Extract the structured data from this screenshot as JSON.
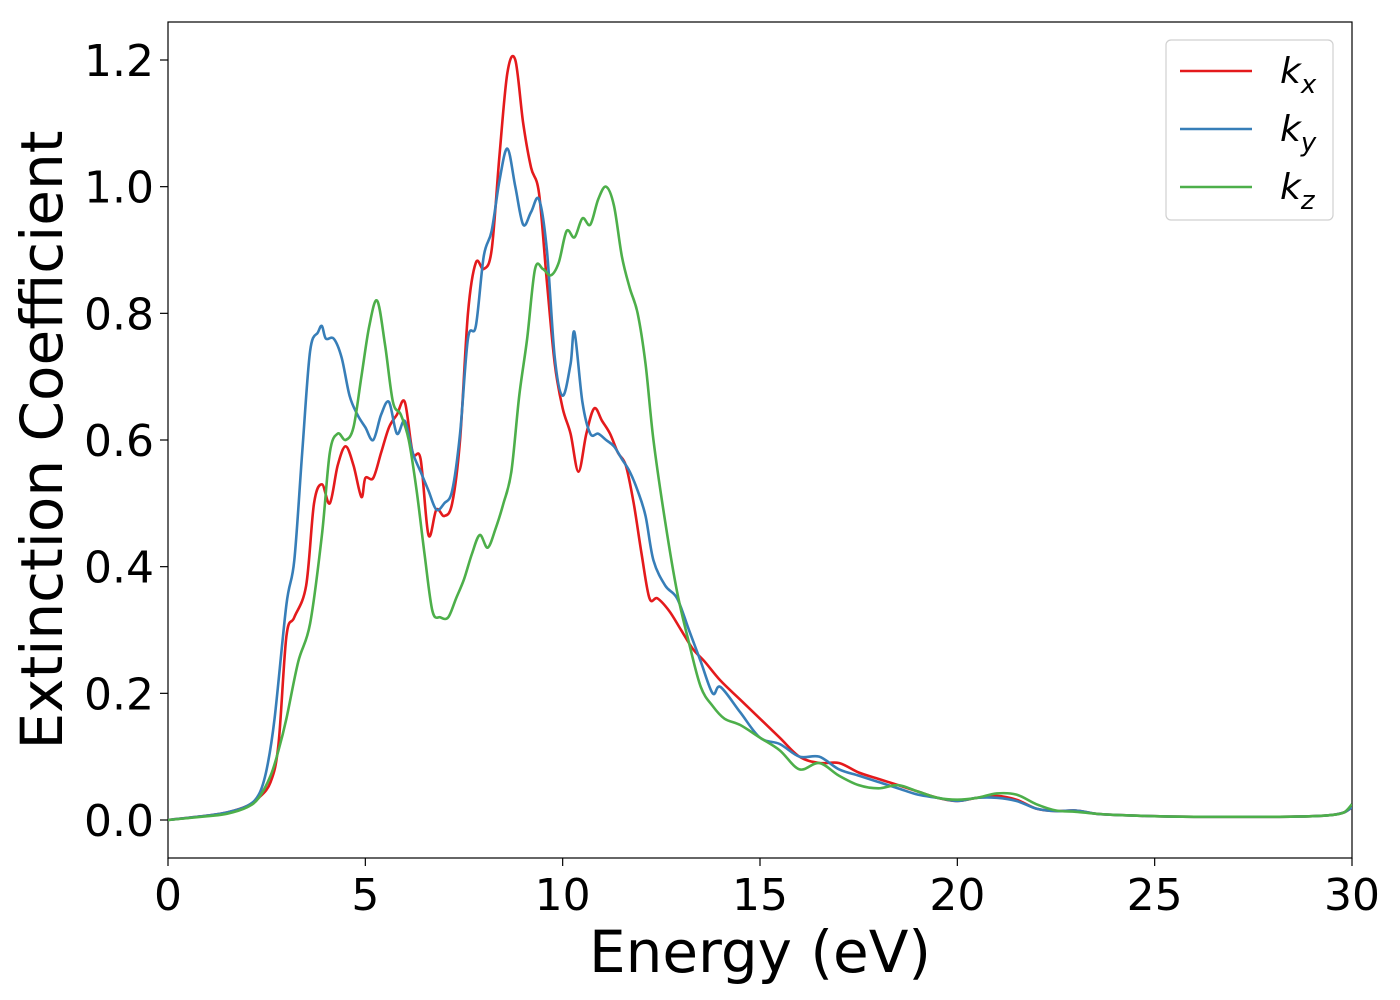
{
  "chart_data": {
    "type": "line",
    "xlabel": "Energy (eV)",
    "ylabel": "Extinction Coefficient",
    "xlim": [
      0,
      30
    ],
    "ylim": [
      -0.06,
      1.26
    ],
    "xticks": [
      0,
      5,
      10,
      15,
      20,
      25,
      30
    ],
    "xtick_labels": [
      "0",
      "5",
      "10",
      "15",
      "20",
      "25",
      "30"
    ],
    "yticks": [
      0.0,
      0.2,
      0.4,
      0.6,
      0.8,
      1.0,
      1.2
    ],
    "ytick_labels": [
      "0.0",
      "0.2",
      "0.4",
      "0.6",
      "0.8",
      "1.0",
      "1.2"
    ],
    "grid": false,
    "legend_position": "top-right",
    "series": [
      {
        "name": "k",
        "subscript": "x",
        "color": "#e41a1c",
        "x": [
          0,
          1,
          1.5,
          2,
          2.3,
          2.6,
          2.8,
          3.0,
          3.2,
          3.5,
          3.7,
          3.9,
          4.1,
          4.3,
          4.5,
          4.7,
          4.9,
          5.0,
          5.2,
          5.4,
          5.6,
          5.8,
          6.0,
          6.2,
          6.4,
          6.6,
          6.8,
          7.0,
          7.2,
          7.4,
          7.6,
          7.8,
          8.0,
          8.2,
          8.4,
          8.6,
          8.8,
          9.0,
          9.2,
          9.4,
          9.6,
          9.8,
          10.0,
          10.2,
          10.4,
          10.6,
          10.8,
          11.0,
          11.2,
          11.4,
          11.6,
          11.8,
          12.0,
          12.2,
          12.4,
          12.7,
          13.0,
          13.3,
          13.6,
          14.0,
          14.5,
          15.0,
          15.5,
          16.0,
          16.5,
          17.0,
          17.5,
          18.0,
          18.5,
          19.0,
          19.5,
          20.0,
          20.5,
          21.0,
          21.5,
          22.0,
          22.5,
          23.0,
          23.5,
          24.0,
          25.0,
          26.0,
          27.0,
          28.0,
          29.0,
          29.5,
          29.8,
          30.0
        ],
        "values": [
          0.0,
          0.007,
          0.012,
          0.022,
          0.035,
          0.06,
          0.12,
          0.29,
          0.32,
          0.37,
          0.5,
          0.53,
          0.5,
          0.56,
          0.59,
          0.56,
          0.51,
          0.54,
          0.54,
          0.58,
          0.62,
          0.64,
          0.66,
          0.58,
          0.57,
          0.45,
          0.49,
          0.48,
          0.5,
          0.6,
          0.8,
          0.88,
          0.87,
          0.9,
          1.05,
          1.18,
          1.2,
          1.1,
          1.03,
          0.99,
          0.85,
          0.72,
          0.65,
          0.61,
          0.55,
          0.61,
          0.65,
          0.63,
          0.61,
          0.58,
          0.56,
          0.5,
          0.42,
          0.35,
          0.35,
          0.33,
          0.3,
          0.27,
          0.25,
          0.22,
          0.19,
          0.16,
          0.13,
          0.1,
          0.09,
          0.09,
          0.075,
          0.065,
          0.055,
          0.045,
          0.035,
          0.03,
          0.035,
          0.038,
          0.032,
          0.018,
          0.014,
          0.015,
          0.01,
          0.008,
          0.006,
          0.005,
          0.005,
          0.005,
          0.006,
          0.008,
          0.012,
          0.02
        ]
      },
      {
        "name": "k",
        "subscript": "y",
        "color": "#377eb8",
        "x": [
          0,
          1,
          1.5,
          2,
          2.3,
          2.5,
          2.7,
          3.0,
          3.2,
          3.4,
          3.6,
          3.8,
          3.9,
          4.0,
          4.2,
          4.4,
          4.6,
          4.8,
          5.0,
          5.2,
          5.4,
          5.6,
          5.8,
          6.0,
          6.2,
          6.4,
          6.6,
          6.8,
          7.0,
          7.2,
          7.4,
          7.6,
          7.8,
          8.0,
          8.2,
          8.4,
          8.6,
          8.8,
          9.0,
          9.2,
          9.4,
          9.6,
          9.8,
          10.0,
          10.2,
          10.3,
          10.5,
          10.7,
          10.9,
          11.1,
          11.3,
          11.5,
          11.7,
          11.9,
          12.1,
          12.3,
          12.6,
          12.9,
          13.2,
          13.5,
          13.8,
          14.0,
          14.5,
          15.0,
          15.5,
          16.0,
          16.5,
          17.0,
          17.5,
          18.0,
          18.5,
          19.0,
          19.5,
          20.0,
          20.5,
          21.0,
          21.5,
          22.0,
          22.5,
          23.0,
          23.5,
          24.0,
          25.0,
          26.0,
          27.0,
          28.0,
          29.0,
          29.5,
          29.8,
          30.0
        ],
        "values": [
          0.0,
          0.007,
          0.012,
          0.022,
          0.04,
          0.08,
          0.16,
          0.34,
          0.41,
          0.58,
          0.74,
          0.77,
          0.78,
          0.76,
          0.76,
          0.73,
          0.67,
          0.64,
          0.62,
          0.6,
          0.64,
          0.66,
          0.61,
          0.63,
          0.58,
          0.55,
          0.52,
          0.49,
          0.5,
          0.52,
          0.61,
          0.76,
          0.78,
          0.89,
          0.93,
          1.01,
          1.06,
          1.0,
          0.94,
          0.96,
          0.98,
          0.9,
          0.73,
          0.67,
          0.72,
          0.77,
          0.66,
          0.61,
          0.61,
          0.6,
          0.59,
          0.57,
          0.55,
          0.52,
          0.48,
          0.41,
          0.37,
          0.35,
          0.3,
          0.25,
          0.2,
          0.21,
          0.17,
          0.13,
          0.12,
          0.1,
          0.1,
          0.08,
          0.07,
          0.06,
          0.05,
          0.04,
          0.035,
          0.03,
          0.035,
          0.035,
          0.03,
          0.018,
          0.014,
          0.015,
          0.01,
          0.008,
          0.006,
          0.005,
          0.005,
          0.005,
          0.006,
          0.008,
          0.012,
          0.02
        ]
      },
      {
        "name": "k",
        "subscript": "z",
        "color": "#4daf4a",
        "x": [
          0,
          1,
          1.5,
          2,
          2.3,
          2.6,
          2.8,
          3.0,
          3.3,
          3.6,
          3.9,
          4.1,
          4.3,
          4.5,
          4.7,
          4.9,
          5.1,
          5.3,
          5.5,
          5.7,
          5.9,
          6.1,
          6.3,
          6.5,
          6.7,
          6.9,
          7.1,
          7.3,
          7.5,
          7.7,
          7.9,
          8.1,
          8.3,
          8.5,
          8.7,
          8.9,
          9.1,
          9.3,
          9.5,
          9.7,
          9.9,
          10.1,
          10.3,
          10.5,
          10.7,
          10.9,
          11.1,
          11.3,
          11.5,
          11.7,
          11.9,
          12.1,
          12.3,
          12.6,
          12.9,
          13.2,
          13.5,
          13.8,
          14.1,
          14.5,
          15.0,
          15.5,
          16.0,
          16.5,
          17.0,
          17.5,
          18.0,
          18.5,
          19.0,
          19.5,
          20.0,
          20.5,
          21.0,
          21.5,
          22.0,
          22.5,
          23.0,
          23.5,
          24.0,
          25.0,
          26.0,
          27.0,
          28.0,
          29.0,
          29.5,
          29.8,
          30.0
        ],
        "values": [
          0.0,
          0.006,
          0.01,
          0.02,
          0.035,
          0.07,
          0.11,
          0.16,
          0.25,
          0.31,
          0.45,
          0.58,
          0.61,
          0.6,
          0.62,
          0.7,
          0.78,
          0.82,
          0.75,
          0.66,
          0.64,
          0.6,
          0.52,
          0.42,
          0.33,
          0.32,
          0.32,
          0.35,
          0.38,
          0.42,
          0.45,
          0.43,
          0.46,
          0.5,
          0.55,
          0.67,
          0.76,
          0.87,
          0.87,
          0.86,
          0.88,
          0.93,
          0.92,
          0.95,
          0.94,
          0.98,
          1.0,
          0.97,
          0.89,
          0.84,
          0.8,
          0.72,
          0.6,
          0.47,
          0.36,
          0.28,
          0.21,
          0.18,
          0.16,
          0.15,
          0.13,
          0.11,
          0.08,
          0.09,
          0.07,
          0.055,
          0.05,
          0.055,
          0.045,
          0.035,
          0.032,
          0.035,
          0.042,
          0.04,
          0.025,
          0.015,
          0.013,
          0.01,
          0.008,
          0.006,
          0.005,
          0.005,
          0.005,
          0.006,
          0.008,
          0.012,
          0.025
        ]
      }
    ]
  }
}
